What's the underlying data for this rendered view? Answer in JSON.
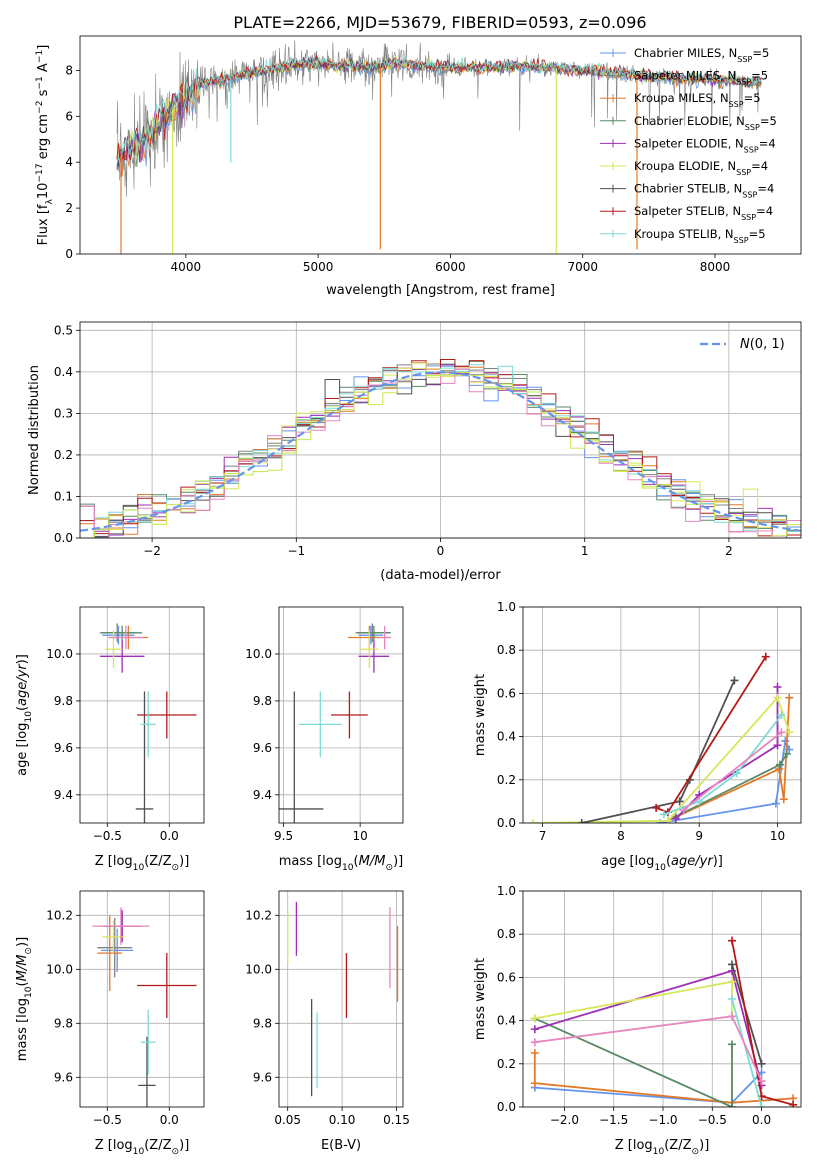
{
  "figure": {
    "title": "PLATE=2266, MJD=53679, FIBERID=0593, z=0.096"
  },
  "colors": {
    "Chabrier MILES": "#6495ed",
    "Salpeter MILES": "#808080",
    "Kroupa MILES": "#e37a2a",
    "Chabrier ELODIE": "#5a8a66",
    "Salpeter ELODIE": "#9e2fb6",
    "Kroupa ELODIE": "#d8e65a",
    "Chabrier STELIB": "#505050",
    "Salpeter STELIB": "#b51a1a",
    "Kroupa STELIB": "#7fdbd6",
    "pink": "#e886c0",
    "lime": "#c6e84a",
    "normal": "#6495ed"
  },
  "chart_data": [
    {
      "id": "spectrum",
      "type": "line",
      "xlabel": "wavelength [Angstrom, rest frame]",
      "ylabel": "Flux [f_λ10^{-17} erg cm^{-2} s^{-1} A^{-1}]",
      "xlim": [
        3200,
        8650
      ],
      "ylim": [
        0,
        9.5
      ],
      "xticks": [
        4000,
        5000,
        6000,
        7000,
        8000
      ],
      "yticks": [
        0,
        2,
        4,
        6,
        8
      ],
      "legend": [
        {
          "name": "Chabrier MILES",
          "nssp": "5"
        },
        {
          "name": "Salpeter MILES",
          "nssp": "5"
        },
        {
          "name": "Kroupa MILES",
          "nssp": "5"
        },
        {
          "name": "Chabrier ELODIE",
          "nssp": "5"
        },
        {
          "name": "Salpeter ELODIE",
          "nssp": "4"
        },
        {
          "name": "Kroupa ELODIE",
          "nssp": "4"
        },
        {
          "name": "Chabrier STELIB",
          "nssp": "4"
        },
        {
          "name": "Salpeter STELIB",
          "nssp": "4"
        },
        {
          "name": "Kroupa STELIB",
          "nssp": "5"
        }
      ],
      "continuum": [
        [
          3500,
          4.2
        ],
        [
          3600,
          4.6
        ],
        [
          3700,
          5.0
        ],
        [
          3800,
          5.8
        ],
        [
          3900,
          6.3
        ],
        [
          4000,
          6.9
        ],
        [
          4100,
          7.4
        ],
        [
          4300,
          7.6
        ],
        [
          4500,
          7.9
        ],
        [
          4800,
          8.2
        ],
        [
          5000,
          8.3
        ],
        [
          5200,
          8.2
        ],
        [
          5400,
          8.1
        ],
        [
          5600,
          8.3
        ],
        [
          5800,
          8.2
        ],
        [
          6000,
          8.1
        ],
        [
          6200,
          8.1
        ],
        [
          6500,
          8.2
        ],
        [
          6800,
          8.1
        ],
        [
          7000,
          8.0
        ],
        [
          7200,
          7.9
        ],
        [
          7400,
          7.8
        ],
        [
          7600,
          7.7
        ],
        [
          8000,
          7.6
        ],
        [
          8300,
          7.5
        ]
      ],
      "dips": [
        [
          3510,
          0.0
        ],
        [
          3900,
          0.0
        ],
        [
          4340,
          4.0
        ],
        [
          5470,
          0.2
        ],
        [
          6800,
          0.0
        ],
        [
          7410,
          0.2
        ]
      ]
    },
    {
      "id": "residuals",
      "type": "histogram",
      "xlabel": "(data-model)/error",
      "ylabel": "Normed distribution",
      "xlim": [
        -2.5,
        2.5
      ],
      "ylim": [
        0,
        0.52
      ],
      "xticks": [
        -2,
        -1,
        0,
        1,
        2
      ],
      "yticks": [
        0.0,
        0.1,
        0.2,
        0.3,
        0.4,
        0.5
      ],
      "legend": "N(0,1)",
      "bin_width": 0.1
    },
    {
      "id": "age-vs-Z",
      "type": "scatter",
      "xlabel": "Z [log10(Z/Z⊙)]",
      "ylabel": "age [log10(age/yr)]",
      "xlim": [
        -0.72,
        0.28
      ],
      "ylim": [
        9.28,
        10.2
      ],
      "xticks": [
        -0.5,
        0.0
      ],
      "yticks": [
        9.4,
        9.6,
        9.8,
        10.0
      ],
      "points": [
        {
          "color": "Chabrier MILES",
          "x": -0.41,
          "xerr": 0.13,
          "y": 10.08,
          "yerr": 0.04
        },
        {
          "color": "Salpeter MILES",
          "x": -0.42,
          "xerr": 0.14,
          "y": 10.09,
          "yerr": 0.04
        },
        {
          "color": "Kroupa MILES",
          "x": -0.33,
          "xerr": 0.16,
          "y": 10.07,
          "yerr": 0.05
        },
        {
          "color": "Chabrier ELODIE",
          "x": -0.38,
          "xerr": 0.16,
          "y": 10.09,
          "yerr": 0.03
        },
        {
          "color": "Salpeter ELODIE",
          "x": -0.38,
          "xerr": 0.18,
          "y": 9.99,
          "yerr": 0.07
        },
        {
          "color": "Kroupa ELODIE",
          "x": -0.45,
          "xerr": 0.07,
          "y": 10.02,
          "yerr": 0.08
        },
        {
          "color": "Chabrier STELIB",
          "x": -0.2,
          "xerr": 0.07,
          "y": 9.34,
          "yerr": 0.5
        },
        {
          "color": "Salpeter STELIB",
          "x": -0.02,
          "xerr": 0.24,
          "y": 9.74,
          "yerr": 0.1
        },
        {
          "color": "Kroupa STELIB",
          "x": -0.17,
          "xerr": 0.06,
          "y": 9.7,
          "yerr": 0.14
        },
        {
          "color": "pink",
          "x": -0.35,
          "xerr": 0.14,
          "y": 10.07,
          "yerr": 0.05
        }
      ]
    },
    {
      "id": "age-vs-mass",
      "type": "scatter",
      "xlabel": "mass [log10(M/M⊙)]",
      "ylabel": "",
      "xlim": [
        9.47,
        10.28
      ],
      "ylim": [
        9.28,
        10.2
      ],
      "xticks": [
        9.5,
        10.0
      ],
      "yticks": [
        9.4,
        9.6,
        9.8,
        10.0
      ],
      "points": [
        {
          "color": "Chabrier MILES",
          "x": 10.07,
          "xerr": 0.08,
          "y": 10.08,
          "yerr": 0.04
        },
        {
          "color": "Salpeter MILES",
          "x": 10.08,
          "xerr": 0.11,
          "y": 10.09,
          "yerr": 0.04
        },
        {
          "color": "Kroupa MILES",
          "x": 10.06,
          "xerr": 0.14,
          "y": 10.07,
          "yerr": 0.05
        },
        {
          "color": "Chabrier ELODIE",
          "x": 10.09,
          "xerr": 0.11,
          "y": 10.09,
          "yerr": 0.03
        },
        {
          "color": "Salpeter ELODIE",
          "x": 10.09,
          "xerr": 0.1,
          "y": 9.99,
          "yerr": 0.07
        },
        {
          "color": "Kroupa ELODIE",
          "x": 10.06,
          "xerr": 0.06,
          "y": 10.02,
          "yerr": 0.08
        },
        {
          "color": "Chabrier STELIB",
          "x": 9.57,
          "xerr": 0.19,
          "y": 9.34,
          "yerr": 0.5
        },
        {
          "color": "Salpeter STELIB",
          "x": 9.93,
          "xerr": 0.12,
          "y": 9.74,
          "yerr": 0.1
        },
        {
          "color": "Kroupa STELIB",
          "x": 9.74,
          "xerr": 0.14,
          "y": 9.7,
          "yerr": 0.14
        },
        {
          "color": "pink",
          "x": 10.16,
          "xerr": 0.04,
          "y": 10.07,
          "yerr": 0.05
        }
      ]
    },
    {
      "id": "weight-vs-age",
      "type": "line",
      "xlabel": "age [log10(age/yr)]",
      "ylabel": "mass weight",
      "xlim": [
        6.75,
        10.3
      ],
      "ylim": [
        0,
        1.0
      ],
      "xticks": [
        7,
        8,
        9,
        10
      ],
      "yticks": [
        0.0,
        0.2,
        0.4,
        0.6,
        0.8,
        1.0
      ],
      "series": [
        {
          "color": "Chabrier MILES",
          "points": [
            [
              8.5,
              0.0
            ],
            [
              9.98,
              0.09
            ],
            [
              10.1,
              0.38
            ],
            [
              10.15,
              0.34
            ]
          ]
        },
        {
          "color": "Kroupa MILES",
          "points": [
            [
              8.6,
              0.01
            ],
            [
              10.02,
              0.25
            ],
            [
              10.08,
              0.11
            ],
            [
              10.15,
              0.58
            ]
          ]
        },
        {
          "color": "Chabrier ELODIE",
          "points": [
            [
              8.7,
              0.03
            ],
            [
              10.03,
              0.27
            ],
            [
              10.12,
              0.32
            ]
          ]
        },
        {
          "color": "Salpeter ELODIE",
          "points": [
            [
              8.7,
              0.02
            ],
            [
              9.0,
              0.13
            ],
            [
              10.0,
              0.36
            ],
            [
              10.0,
              0.63
            ]
          ]
        },
        {
          "color": "Kroupa ELODIE",
          "points": [
            [
              6.88,
              0.0
            ],
            [
              8.6,
              0.01
            ],
            [
              10.0,
              0.58
            ],
            [
              10.15,
              0.42
            ]
          ]
        },
        {
          "color": "Chabrier STELIB",
          "points": [
            [
              7.5,
              0.0
            ],
            [
              8.75,
              0.1
            ],
            [
              8.88,
              0.2
            ],
            [
              9.45,
              0.66
            ]
          ]
        },
        {
          "color": "Salpeter STELIB",
          "points": [
            [
              8.45,
              0.07
            ],
            [
              8.6,
              0.05
            ],
            [
              9.85,
              0.77
            ]
          ]
        },
        {
          "color": "Kroupa STELIB",
          "points": [
            [
              8.55,
              0.04
            ],
            [
              9.0,
              0.1
            ],
            [
              9.48,
              0.23
            ],
            [
              10.05,
              0.5
            ]
          ]
        },
        {
          "color": "pink",
          "points": [
            [
              8.8,
              0.06
            ],
            [
              10.05,
              0.42
            ]
          ]
        }
      ]
    },
    {
      "id": "mass-vs-Z",
      "type": "scatter",
      "xlabel": "Z [log10(Z/Z⊙)]",
      "ylabel": "mass [log10(M/M⊙)]",
      "xlim": [
        -0.72,
        0.28
      ],
      "ylim": [
        9.49,
        10.29
      ],
      "xticks": [
        -0.5,
        0.0
      ],
      "yticks": [
        9.6,
        9.8,
        10.0,
        10.2
      ],
      "points": [
        {
          "color": "Chabrier MILES",
          "x": -0.42,
          "xerr": 0.13,
          "y": 10.07,
          "yerr": 0.08
        },
        {
          "color": "Salpeter MILES",
          "x": -0.44,
          "xerr": 0.14,
          "y": 10.08,
          "yerr": 0.11
        },
        {
          "color": "Kroupa MILES",
          "x": -0.48,
          "xerr": 0.1,
          "y": 10.06,
          "yerr": 0.14
        },
        {
          "color": "Chabrier ELODIE",
          "x": -0.38,
          "xerr": 0.16,
          "y": 10.16,
          "yerr": 0.05
        },
        {
          "color": "Salpeter ELODIE",
          "x": -0.38,
          "xerr": 0.15,
          "y": 10.16,
          "yerr": 0.06
        },
        {
          "color": "Kroupa ELODIE",
          "x": -0.45,
          "xerr": 0.09,
          "y": 10.12,
          "yerr": 0.06
        },
        {
          "color": "Chabrier STELIB",
          "x": -0.18,
          "xerr": 0.07,
          "y": 9.57,
          "yerr": 0.18
        },
        {
          "color": "Salpeter STELIB",
          "x": -0.02,
          "xerr": 0.24,
          "y": 9.94,
          "yerr": 0.12
        },
        {
          "color": "Kroupa STELIB",
          "x": -0.17,
          "xerr": 0.06,
          "y": 9.73,
          "yerr": 0.12
        },
        {
          "color": "pink",
          "x": -0.39,
          "xerr": 0.23,
          "y": 10.16,
          "yerr": 0.07
        }
      ]
    },
    {
      "id": "mass-vs-ebv",
      "type": "scatter",
      "xlabel": "E(B-V)",
      "ylabel": "",
      "xlim": [
        0.042,
        0.156
      ],
      "ylim": [
        9.49,
        10.29
      ],
      "xticks": [
        0.05,
        0.1,
        0.15
      ],
      "yticks": [
        9.6,
        9.8,
        10.0,
        10.2
      ],
      "points": [
        {
          "color": "Salpeter ELODIE",
          "x": 0.058,
          "xerr": 0.0,
          "y": 10.15,
          "yerr": 0.1
        },
        {
          "color": "Kroupa ELODIE",
          "x": 0.05,
          "xerr": 0.0,
          "y": 10.12,
          "yerr": 0.1
        },
        {
          "color": "Chabrier STELIB",
          "x": 0.072,
          "xerr": 0.0,
          "y": 9.71,
          "yerr": 0.18
        },
        {
          "color": "Salpeter STELIB",
          "x": 0.104,
          "xerr": 0.0,
          "y": 9.94,
          "yerr": 0.12
        },
        {
          "color": "Kroupa STELIB",
          "x": 0.077,
          "xerr": 0.0,
          "y": 9.7,
          "yerr": 0.14
        },
        {
          "color": "pink",
          "x": 0.144,
          "xerr": 0.0,
          "y": 10.08,
          "yerr": 0.15
        },
        {
          "color": "Kroupa MILES",
          "x": 0.151,
          "xerr": 0.0,
          "y": 10.02,
          "yerr": 0.14
        }
      ]
    },
    {
      "id": "weight-vs-Z",
      "type": "line",
      "xlabel": "Z [log10(Z/Z⊙)]",
      "ylabel": "mass weight",
      "xlim": [
        -2.42,
        0.4
      ],
      "ylim": [
        0,
        1.0
      ],
      "xticks": [
        -2.0,
        -1.5,
        -1.0,
        -0.5,
        0.0
      ],
      "yticks": [
        0.0,
        0.2,
        0.4,
        0.6,
        0.8,
        1.0
      ],
      "series": [
        {
          "color": "Chabrier MILES",
          "points": [
            [
              -2.3,
              0.09
            ],
            [
              -0.3,
              0.02
            ],
            [
              0.0,
              0.16
            ]
          ]
        },
        {
          "color": "Kroupa MILES",
          "points": [
            [
              -2.3,
              0.25
            ],
            [
              -2.3,
              0.11
            ],
            [
              -0.3,
              0.02
            ],
            [
              0.32,
              0.04
            ]
          ]
        },
        {
          "color": "Chabrier ELODIE",
          "points": [
            [
              -2.3,
              0.41
            ],
            [
              -0.3,
              0.0
            ],
            [
              -0.3,
              0.29
            ]
          ]
        },
        {
          "color": "Salpeter ELODIE",
          "points": [
            [
              -2.3,
              0.36
            ],
            [
              -0.3,
              0.63
            ],
            [
              0.0,
              0.1
            ]
          ]
        },
        {
          "color": "Kroupa ELODIE",
          "points": [
            [
              -2.3,
              0.41
            ],
            [
              -0.3,
              0.58
            ],
            [
              -0.3,
              0.42
            ]
          ]
        },
        {
          "color": "Chabrier STELIB",
          "points": [
            [
              -0.3,
              0.66
            ],
            [
              0.0,
              0.2
            ]
          ]
        },
        {
          "color": "Salpeter STELIB",
          "points": [
            [
              -0.3,
              0.77
            ],
            [
              0.0,
              0.05
            ],
            [
              0.32,
              0.01
            ]
          ]
        },
        {
          "color": "Kroupa STELIB",
          "points": [
            [
              -0.3,
              0.5
            ],
            [
              0.0,
              0.0
            ]
          ]
        },
        {
          "color": "pink",
          "points": [
            [
              -2.3,
              0.3
            ],
            [
              -0.3,
              0.42
            ],
            [
              0.0,
              0.12
            ]
          ]
        }
      ]
    }
  ]
}
